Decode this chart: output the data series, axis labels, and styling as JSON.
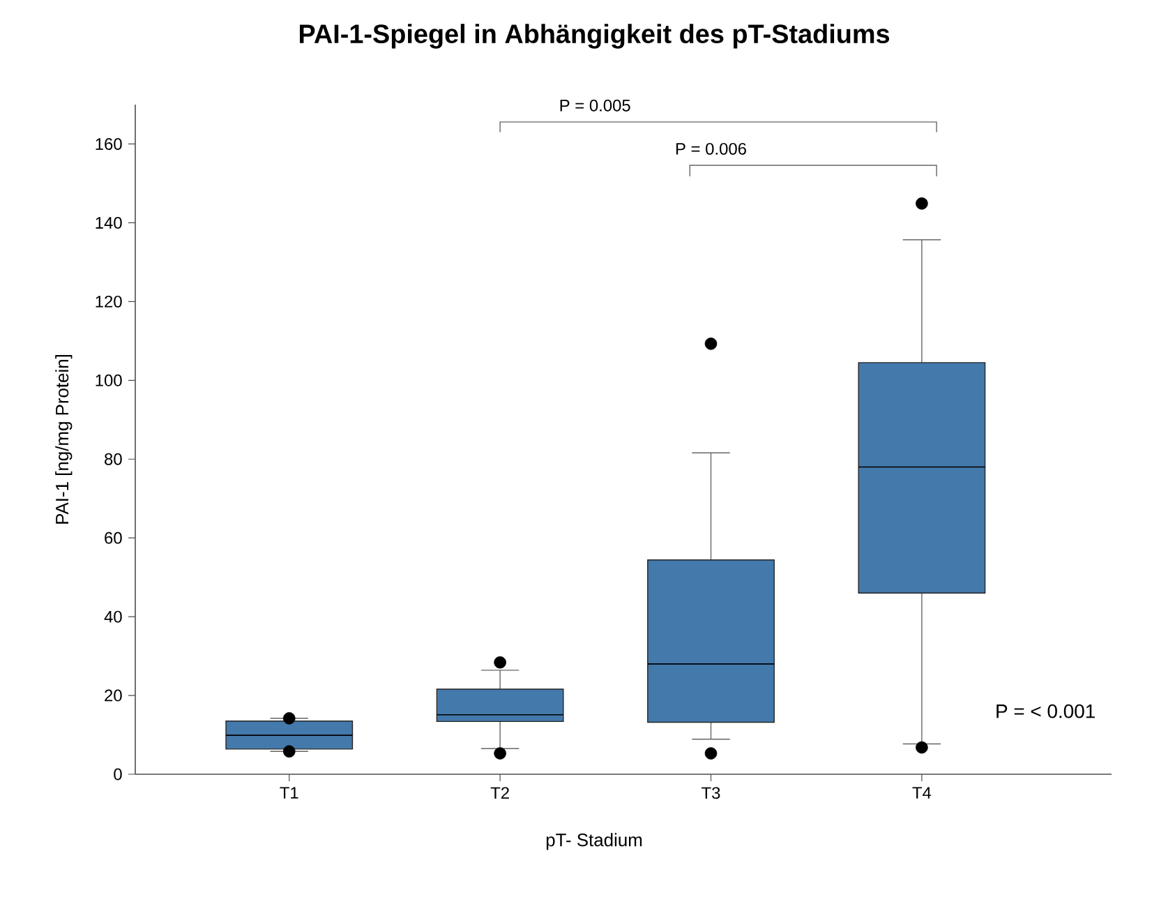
{
  "chart_data": {
    "type": "box",
    "title": "PAI-1-Spiegel in Abhängigkeit des pT-Stadiums",
    "xlabel": "pT- Stadium",
    "ylabel": "PAI-1 [ng/mg Protein]",
    "categories": [
      "T1",
      "T2",
      "T3",
      "T4"
    ],
    "color": "#4479ab",
    "boxes": [
      {
        "low": 5.8,
        "q1": 6.4,
        "median": 9.9,
        "q3": 13.5,
        "high": 14.2,
        "outliers": [
          14.2,
          5.8
        ]
      },
      {
        "low": 6.5,
        "q1": 13.4,
        "median": 15.1,
        "q3": 21.6,
        "high": 26.4,
        "outliers": [
          28.4,
          5.3
        ]
      },
      {
        "low": 8.9,
        "q1": 13.2,
        "median": 28.0,
        "q3": 54.4,
        "high": 81.6,
        "outliers": [
          109.3,
          5.3
        ]
      },
      {
        "low": 7.7,
        "q1": 46.0,
        "median": 78.0,
        "q3": 104.5,
        "high": 135.7,
        "outliers": [
          144.9,
          6.8
        ]
      }
    ],
    "ylim": [
      0,
      170
    ],
    "yticks": [
      0,
      20,
      40,
      60,
      80,
      100,
      120,
      140,
      160
    ],
    "annotations": [
      "P = 0.005",
      "P = 0.006",
      "P = < 0.001"
    ]
  }
}
